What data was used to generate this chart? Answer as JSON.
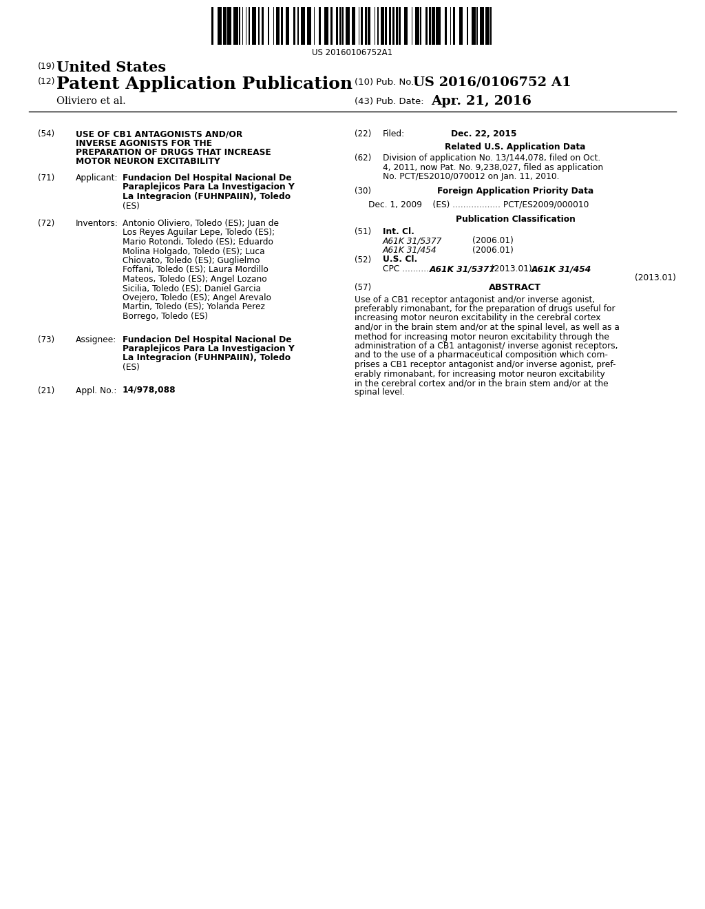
{
  "background_color": "#ffffff",
  "barcode_number": "US 20160106752A1",
  "patent_number_19": "United States",
  "patent_number_12": "Patent Application Publication",
  "pub_no_label": "(10) Pub. No.:",
  "pub_no_value": "US 2016/0106752 A1",
  "pub_date_label": "(43) Pub. Date:",
  "pub_date_value": "Apr. 21, 2016",
  "inventor_line": "Oliviero et al.",
  "section_54_label": "(54)",
  "section_54_lines": [
    "USE OF CB1 ANTAGONISTS AND/OR",
    "INVERSE AGONISTS FOR THE",
    "PREPARATION OF DRUGS THAT INCREASE",
    "MOTOR NEURON EXCITABILITY"
  ],
  "section_71_label": "(71)",
  "section_71_key": "Applicant:",
  "section_71_value_lines": [
    "Fundacion Del Hospital Nacional De",
    "Paraplejicos Para La Investigacion Y",
    "La Integracion (FUHNPAIIN), Toledo",
    "(ES)"
  ],
  "section_71_bold_end": [
    true,
    true,
    true,
    false
  ],
  "section_72_label": "(72)",
  "section_72_key": "Inventors:",
  "section_72_value_lines": [
    "Antonio Oliviero, Toledo (ES); Juan de",
    "Los Reyes Aguilar Lepe, Toledo (ES);",
    "Mario Rotondi, Toledo (ES); Eduardo",
    "Molina Holgado, Toledo (ES); Luca",
    "Chiovato, Toledo (ES); Guglielmo",
    "Foffani, Toledo (ES); Laura Mordillo",
    "Mateos, Toledo (ES); Angel Lozano",
    "Sicilia, Toledo (ES); Daniel Garcia",
    "Ovejero, Toledo (ES); Angel Arevalo",
    "Martin, Toledo (ES); Yolanda Perez",
    "Borrego, Toledo (ES)"
  ],
  "section_73_label": "(73)",
  "section_73_key": "Assignee:",
  "section_73_value_lines": [
    "Fundacion Del Hospital Nacional De",
    "Paraplejicos Para La Investigacion Y",
    "La Integracion (FUHNPAIIN), Toledo",
    "(ES)"
  ],
  "section_21_label": "(21)",
  "section_21_key": "Appl. No.:",
  "section_21_value": "14/978,088",
  "section_22_label": "(22)",
  "section_22_key": "Filed:",
  "section_22_value": "Dec. 22, 2015",
  "related_us_title": "Related U.S. Application Data",
  "section_62_label": "(62)",
  "section_62_value_lines": [
    "Division of application No. 13/144,078, filed on Oct.",
    "4, 2011, now Pat. No. 9,238,027, filed as application",
    "No. PCT/ES2010/070012 on Jan. 11, 2010."
  ],
  "section_30_label": "(30)",
  "foreign_app_title": "Foreign Application Priority Data",
  "foreign_app_data": "Dec. 1, 2009    (ES) .................. PCT/ES2009/000010",
  "pub_class_title": "Publication Classification",
  "section_51_label": "(51)",
  "section_51_key": "Int. Cl.",
  "section_51_class1": "A61K 31/5377",
  "section_51_year1": "(2006.01)",
  "section_51_class2": "A61K 31/454",
  "section_51_year2": "(2006.01)",
  "section_52_label": "(52)",
  "section_52_key": "U.S. Cl.",
  "section_52_cpc_prefix": "CPC ..........",
  "section_52_class1": "A61K 31/5377",
  "section_52_text1": " (2013.01); ",
  "section_52_class2": "A61K 31/454",
  "section_52_text2": "(2013.01)",
  "section_57_label": "(57)",
  "section_57_key": "ABSTRACT",
  "section_57_lines": [
    "Use of a CB1 receptor antagonist and/or inverse agonist,",
    "preferably rimonabant, for the preparation of drugs useful for",
    "increasing motor neuron excitability in the cerebral cortex",
    "and/or in the brain stem and/or at the spinal level, as well as a",
    "method for increasing motor neuron excitability through the",
    "administration of a CB1 antagonist/ inverse agonist receptors,",
    "and to the use of a pharmaceutical composition which com-",
    "prises a CB1 receptor antagonist and/or inverse agonist, pref-",
    "erably rimonabant, for increasing motor neuron excitability",
    "in the cerebral cortex and/or in the brain stem and/or at the",
    "spinal level."
  ],
  "lh": 13.5,
  "fs_body": 8.8,
  "fs_label": 8.5
}
